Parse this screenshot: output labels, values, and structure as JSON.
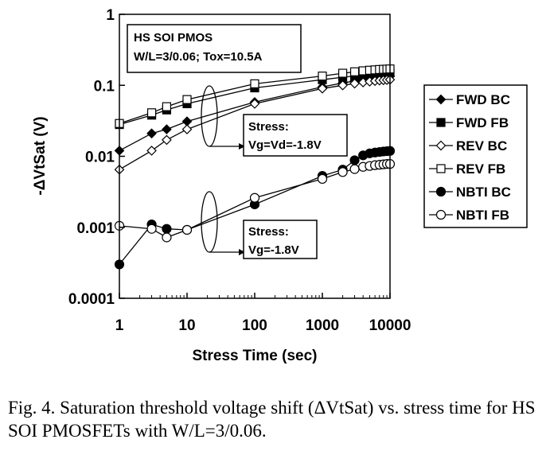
{
  "chart_data": {
    "type": "scatter",
    "xlabel": "Stress Time (sec)",
    "ylabel": "-ΔVtSat (V)",
    "x_scale": "log",
    "y_scale": "log",
    "xlim": [
      1,
      10000
    ],
    "ylim": [
      0.0001,
      1
    ],
    "x_ticks": [
      "1",
      "10",
      "100",
      "1000",
      "10000"
    ],
    "y_ticks": [
      "1",
      "0.1",
      "0.01",
      "0.001",
      "0.0001"
    ],
    "grid": false,
    "legend_position": "right",
    "series": [
      {
        "name": "FWD BC",
        "marker": "diamond",
        "fill": "#000000",
        "x": [
          1,
          3,
          5,
          10,
          100,
          1000,
          2000,
          3000,
          4000,
          5000,
          6000,
          7000,
          8000,
          9000,
          10000
        ],
        "y": [
          0.012,
          0.021,
          0.024,
          0.031,
          0.058,
          0.095,
          0.108,
          0.115,
          0.12,
          0.124,
          0.127,
          0.13,
          0.132,
          0.134,
          0.135
        ]
      },
      {
        "name": "FWD FB",
        "marker": "square",
        "fill": "#000000",
        "x": [
          1,
          3,
          5,
          10,
          100,
          1000,
          2000,
          3000,
          4000,
          5000,
          6000,
          7000,
          8000,
          9000,
          10000
        ],
        "y": [
          0.028,
          0.038,
          0.045,
          0.055,
          0.092,
          0.12,
          0.13,
          0.135,
          0.14,
          0.143,
          0.145,
          0.147,
          0.148,
          0.149,
          0.15
        ]
      },
      {
        "name": "REV BC",
        "marker": "diamond",
        "fill": "#ffffff",
        "x": [
          1,
          3,
          5,
          10,
          100,
          1000,
          2000,
          3000,
          4000,
          5000,
          6000,
          7000,
          8000,
          9000,
          10000
        ],
        "y": [
          0.0065,
          0.012,
          0.017,
          0.024,
          0.055,
          0.09,
          0.1,
          0.106,
          0.11,
          0.113,
          0.115,
          0.117,
          0.118,
          0.119,
          0.12
        ]
      },
      {
        "name": "REV FB",
        "marker": "square",
        "fill": "#ffffff",
        "x": [
          1,
          3,
          5,
          10,
          100,
          1000,
          2000,
          3000,
          4000,
          5000,
          6000,
          7000,
          8000,
          9000,
          10000
        ],
        "y": [
          0.029,
          0.041,
          0.05,
          0.063,
          0.105,
          0.135,
          0.148,
          0.155,
          0.16,
          0.163,
          0.165,
          0.167,
          0.168,
          0.169,
          0.17
        ]
      },
      {
        "name": "NBTI BC",
        "marker": "circle",
        "fill": "#000000",
        "x": [
          1,
          3,
          5,
          10,
          100,
          1000,
          2000,
          3000,
          4000,
          5000,
          6000,
          7000,
          8000,
          9000,
          10000
        ],
        "y": [
          0.0003,
          0.0011,
          0.00095,
          0.00092,
          0.0021,
          0.0053,
          0.0065,
          0.0088,
          0.0103,
          0.011,
          0.0113,
          0.0115,
          0.0117,
          0.0118,
          0.0119
        ]
      },
      {
        "name": "NBTI FB",
        "marker": "circle",
        "fill": "#ffffff",
        "x": [
          1,
          3,
          5,
          10,
          100,
          1000,
          2000,
          3000,
          4000,
          5000,
          6000,
          7000,
          8000,
          9000,
          10000
        ],
        "y": [
          0.00105,
          0.00095,
          0.00072,
          0.00092,
          0.0026,
          0.0048,
          0.006,
          0.0066,
          0.0071,
          0.0073,
          0.0075,
          0.0076,
          0.0077,
          0.0078,
          0.0078
        ]
      }
    ],
    "annotations": {
      "header_box": [
        "HS SOI PMOS",
        "W/L=3/0.06; Tox=10.5A"
      ],
      "stress_upper": [
        "Stress:",
        "Vg=Vd=-1.8V"
      ],
      "stress_lower": [
        "Stress:",
        "Vg=-1.8V"
      ]
    }
  },
  "caption": "Fig. 4. Saturation threshold voltage shift (ΔVtSat) vs. stress time for HS SOI PMOSFETs with W/L=3/0.06."
}
